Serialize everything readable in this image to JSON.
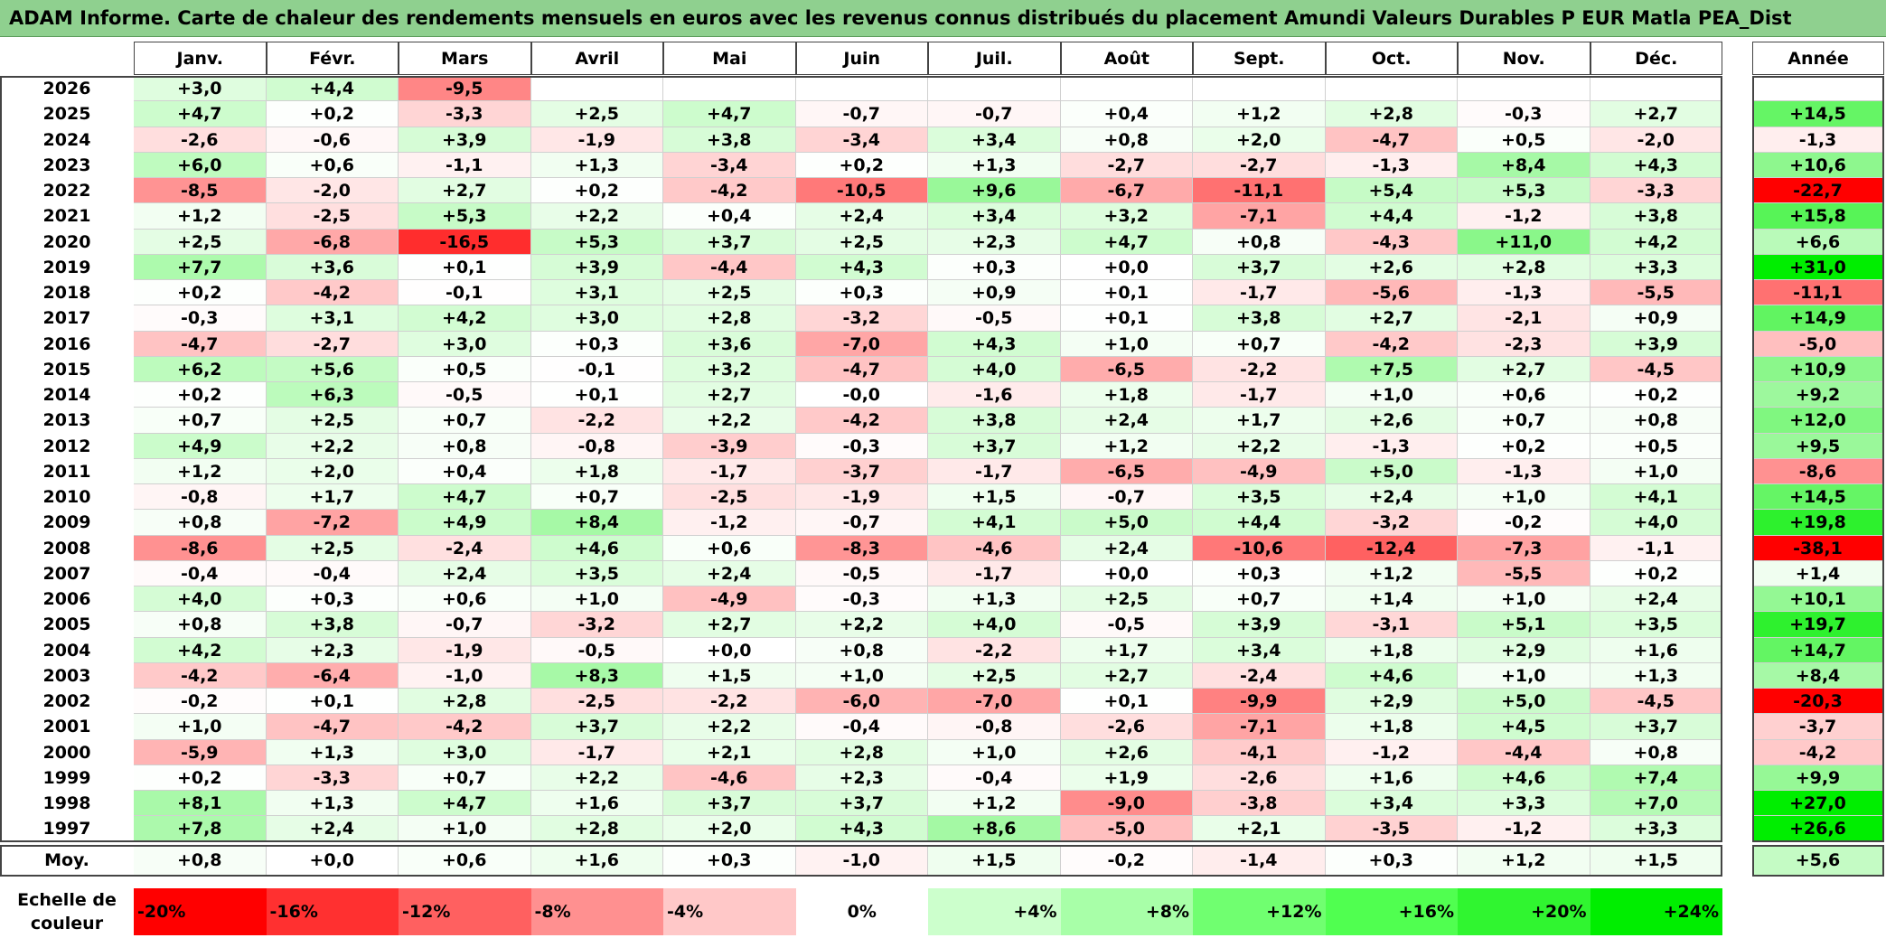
{
  "title": "ADAM Informe. Carte de chaleur des rendements mensuels en euros avec les revenus connus distribués du placement Amundi Valeurs Durables P EUR Matla PEA_Dist",
  "colors": {
    "title_bg": "#8fd08f",
    "negative_max": "#ff0000",
    "positive_max": "#00ee00",
    "neutral": "#ffffff"
  },
  "chart_data": {
    "type": "heatmap",
    "title": "ADAM Informe. Carte de chaleur des rendements mensuels en euros avec les revenus connus distribués du placement Amundi Valeurs Durables P EUR Matla PEA_Dist",
    "months": [
      "Janv.",
      "Févr.",
      "Mars",
      "Avril",
      "Mai",
      "Juin",
      "Juil.",
      "Août",
      "Sept.",
      "Oct.",
      "Nov.",
      "Déc."
    ],
    "year_header": "Année",
    "average_label": "Moy.",
    "rows": [
      {
        "year": "2026",
        "values": [
          "+3,0",
          "+4,4",
          "-9,5",
          "",
          "",
          "",
          "",
          "",
          "",
          "",
          "",
          ""
        ],
        "annual": ""
      },
      {
        "year": "2025",
        "values": [
          "+4,7",
          "+0,2",
          "-3,3",
          "+2,5",
          "+4,7",
          "-0,7",
          "-0,7",
          "+0,4",
          "+1,2",
          "+2,8",
          "-0,3",
          "+2,7"
        ],
        "annual": "+14,5"
      },
      {
        "year": "2024",
        "values": [
          "-2,6",
          "-0,6",
          "+3,9",
          "-1,9",
          "+3,8",
          "-3,4",
          "+3,4",
          "+0,8",
          "+2,0",
          "-4,7",
          "+0,5",
          "-2,0"
        ],
        "annual": "-1,3"
      },
      {
        "year": "2023",
        "values": [
          "+6,0",
          "+0,6",
          "-1,1",
          "+1,3",
          "-3,4",
          "+0,2",
          "+1,3",
          "-2,7",
          "-2,7",
          "-1,3",
          "+8,4",
          "+4,3"
        ],
        "annual": "+10,6"
      },
      {
        "year": "2022",
        "values": [
          "-8,5",
          "-2,0",
          "+2,7",
          "+0,2",
          "-4,2",
          "-10,5",
          "+9,6",
          "-6,7",
          "-11,1",
          "+5,4",
          "+5,3",
          "-3,3"
        ],
        "annual": "-22,7"
      },
      {
        "year": "2021",
        "values": [
          "+1,2",
          "-2,5",
          "+5,3",
          "+2,2",
          "+0,4",
          "+2,4",
          "+3,4",
          "+3,2",
          "-7,1",
          "+4,4",
          "-1,2",
          "+3,8"
        ],
        "annual": "+15,8"
      },
      {
        "year": "2020",
        "values": [
          "+2,5",
          "-6,8",
          "-16,5",
          "+5,3",
          "+3,7",
          "+2,5",
          "+2,3",
          "+4,7",
          "+0,8",
          "-4,3",
          "+11,0",
          "+4,2"
        ],
        "annual": "+6,6"
      },
      {
        "year": "2019",
        "values": [
          "+7,7",
          "+3,6",
          "+0,1",
          "+3,9",
          "-4,4",
          "+4,3",
          "+0,3",
          "+0,0",
          "+3,7",
          "+2,6",
          "+2,8",
          "+3,3"
        ],
        "annual": "+31,0"
      },
      {
        "year": "2018",
        "values": [
          "+0,2",
          "-4,2",
          "-0,1",
          "+3,1",
          "+2,5",
          "+0,3",
          "+0,9",
          "+0,1",
          "-1,7",
          "-5,6",
          "-1,3",
          "-5,5"
        ],
        "annual": "-11,1"
      },
      {
        "year": "2017",
        "values": [
          "-0,3",
          "+3,1",
          "+4,2",
          "+3,0",
          "+2,8",
          "-3,2",
          "-0,5",
          "+0,1",
          "+3,8",
          "+2,7",
          "-2,1",
          "+0,9"
        ],
        "annual": "+14,9"
      },
      {
        "year": "2016",
        "values": [
          "-4,7",
          "-2,7",
          "+3,0",
          "+0,3",
          "+3,6",
          "-7,0",
          "+4,3",
          "+1,0",
          "+0,7",
          "-4,2",
          "-2,3",
          "+3,9"
        ],
        "annual": "-5,0"
      },
      {
        "year": "2015",
        "values": [
          "+6,2",
          "+5,6",
          "+0,5",
          "-0,1",
          "+3,2",
          "-4,7",
          "+4,0",
          "-6,5",
          "-2,2",
          "+7,5",
          "+2,7",
          "-4,5"
        ],
        "annual": "+10,9"
      },
      {
        "year": "2014",
        "values": [
          "+0,2",
          "+6,3",
          "-0,5",
          "+0,1",
          "+2,7",
          "-0,0",
          "-1,6",
          "+1,8",
          "-1,7",
          "+1,0",
          "+0,6",
          "+0,2"
        ],
        "annual": "+9,2"
      },
      {
        "year": "2013",
        "values": [
          "+0,7",
          "+2,5",
          "+0,7",
          "-2,2",
          "+2,2",
          "-4,2",
          "+3,8",
          "+2,4",
          "+1,7",
          "+2,6",
          "+0,7",
          "+0,8"
        ],
        "annual": "+12,0"
      },
      {
        "year": "2012",
        "values": [
          "+4,9",
          "+2,2",
          "+0,8",
          "-0,8",
          "-3,9",
          "-0,3",
          "+3,7",
          "+1,2",
          "+2,2",
          "-1,3",
          "+0,2",
          "+0,5"
        ],
        "annual": "+9,5"
      },
      {
        "year": "2011",
        "values": [
          "+1,2",
          "+2,0",
          "+0,4",
          "+1,8",
          "-1,7",
          "-3,7",
          "-1,7",
          "-6,5",
          "-4,9",
          "+5,0",
          "-1,3",
          "+1,0"
        ],
        "annual": "-8,6"
      },
      {
        "year": "2010",
        "values": [
          "-0,8",
          "+1,7",
          "+4,7",
          "+0,7",
          "-2,5",
          "-1,9",
          "+1,5",
          "-0,7",
          "+3,5",
          "+2,4",
          "+1,0",
          "+4,1"
        ],
        "annual": "+14,5"
      },
      {
        "year": "2009",
        "values": [
          "+0,8",
          "-7,2",
          "+4,9",
          "+8,4",
          "-1,2",
          "-0,7",
          "+4,1",
          "+5,0",
          "+4,4",
          "-3,2",
          "-0,2",
          "+4,0"
        ],
        "annual": "+19,8"
      },
      {
        "year": "2008",
        "values": [
          "-8,6",
          "+2,5",
          "-2,4",
          "+4,6",
          "+0,6",
          "-8,3",
          "-4,6",
          "+2,4",
          "-10,6",
          "-12,4",
          "-7,3",
          "-1,1"
        ],
        "annual": "-38,1"
      },
      {
        "year": "2007",
        "values": [
          "-0,4",
          "-0,4",
          "+2,4",
          "+3,5",
          "+2,4",
          "-0,5",
          "-1,7",
          "+0,0",
          "+0,3",
          "+1,2",
          "-5,5",
          "+0,2"
        ],
        "annual": "+1,4"
      },
      {
        "year": "2006",
        "values": [
          "+4,0",
          "+0,3",
          "+0,6",
          "+1,0",
          "-4,9",
          "-0,3",
          "+1,3",
          "+2,5",
          "+0,7",
          "+1,4",
          "+1,0",
          "+2,4"
        ],
        "annual": "+10,1"
      },
      {
        "year": "2005",
        "values": [
          "+0,8",
          "+3,8",
          "-0,7",
          "-3,2",
          "+2,7",
          "+2,2",
          "+4,0",
          "-0,5",
          "+3,9",
          "-3,1",
          "+5,1",
          "+3,5"
        ],
        "annual": "+19,7"
      },
      {
        "year": "2004",
        "values": [
          "+4,2",
          "+2,3",
          "-1,9",
          "-0,5",
          "+0,0",
          "+0,8",
          "-2,2",
          "+1,7",
          "+3,4",
          "+1,8",
          "+2,9",
          "+1,6"
        ],
        "annual": "+14,7"
      },
      {
        "year": "2003",
        "values": [
          "-4,2",
          "-6,4",
          "-1,0",
          "+8,3",
          "+1,5",
          "+1,0",
          "+2,5",
          "+2,7",
          "-2,4",
          "+4,6",
          "+1,0",
          "+1,3"
        ],
        "annual": "+8,4"
      },
      {
        "year": "2002",
        "values": [
          "-0,2",
          "+0,1",
          "+2,8",
          "-2,5",
          "-2,2",
          "-6,0",
          "-7,0",
          "+0,1",
          "-9,9",
          "+2,9",
          "+5,0",
          "-4,5"
        ],
        "annual": "-20,3"
      },
      {
        "year": "2001",
        "values": [
          "+1,0",
          "-4,7",
          "-4,2",
          "+3,7",
          "+2,2",
          "-0,4",
          "-0,8",
          "-2,6",
          "-7,1",
          "+1,8",
          "+4,5",
          "+3,7"
        ],
        "annual": "-3,7"
      },
      {
        "year": "2000",
        "values": [
          "-5,9",
          "+1,3",
          "+3,0",
          "-1,7",
          "+2,1",
          "+2,8",
          "+1,0",
          "+2,6",
          "-4,1",
          "-1,2",
          "-4,4",
          "+0,8"
        ],
        "annual": "-4,2"
      },
      {
        "year": "1999",
        "values": [
          "+0,2",
          "-3,3",
          "+0,7",
          "+2,2",
          "-4,6",
          "+2,3",
          "-0,4",
          "+1,9",
          "-2,6",
          "+1,6",
          "+4,6",
          "+7,4"
        ],
        "annual": "+9,9"
      },
      {
        "year": "1998",
        "values": [
          "+8,1",
          "+1,3",
          "+4,7",
          "+1,6",
          "+3,7",
          "+3,7",
          "+1,2",
          "-9,0",
          "-3,8",
          "+3,4",
          "+3,3",
          "+7,0"
        ],
        "annual": "+27,0"
      },
      {
        "year": "1997",
        "values": [
          "+7,8",
          "+2,4",
          "+1,0",
          "+2,8",
          "+2,0",
          "+4,3",
          "+8,6",
          "-5,0",
          "+2,1",
          "-3,5",
          "-1,2",
          "+3,3"
        ],
        "annual": "+26,6"
      }
    ],
    "averages": {
      "values": [
        "+0,8",
        "+0,0",
        "+0,6",
        "+1,6",
        "+0,3",
        "-1,0",
        "+1,5",
        "-0,2",
        "-1,4",
        "+0,3",
        "+1,2",
        "+1,5"
      ],
      "annual": "+5,6"
    },
    "color_scale": {
      "label": "Echelle de couleur",
      "stops": [
        "-20%",
        "-16%",
        "-12%",
        "-8%",
        "-4%",
        "0%",
        "+4%",
        "+8%",
        "+12%",
        "+16%",
        "+20%",
        "+24%"
      ]
    }
  }
}
